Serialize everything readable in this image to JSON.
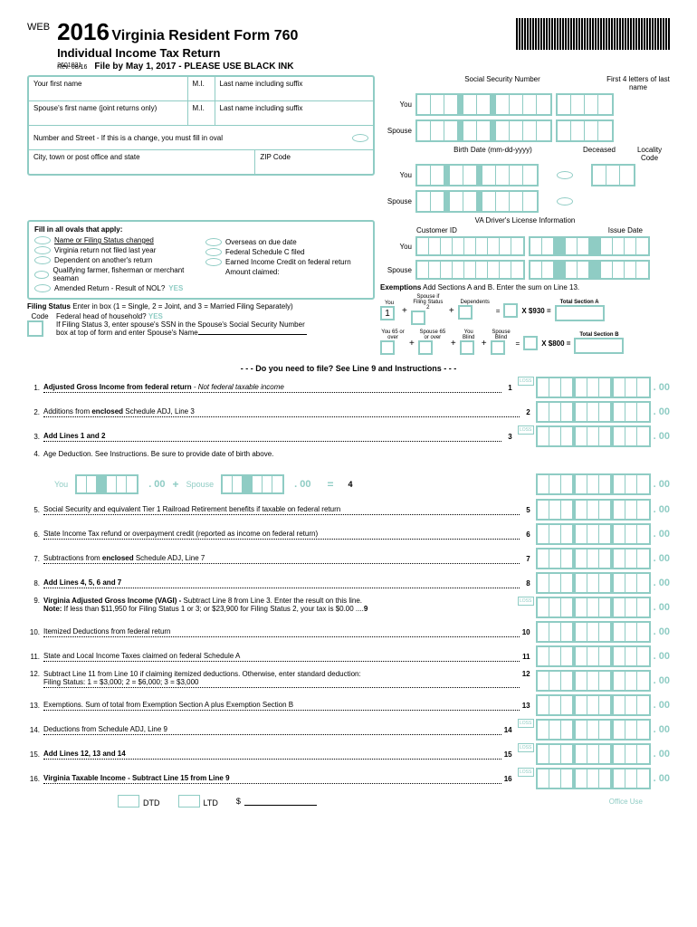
{
  "header": {
    "web": "WEB",
    "year": "2016",
    "title": "Virginia Resident Form 760",
    "subtitle": "Individual Income Tax Return",
    "fileBy": "File by May 1, 2017 - PLEASE USE BLACK INK",
    "code": "2601031",
    "rev": "Rev. 08/16"
  },
  "nameFields": {
    "firstName": "Your first name",
    "mi": "M.I.",
    "lastName": "Last name including suffix",
    "spouseFirst": "Spouse's first name (joint returns only)",
    "spouseMi": "M.I.",
    "spouseLast": "Last name including suffix",
    "address": "Number and Street - If this is a change, you must fill in oval",
    "city": "City, town or post office and state",
    "zip": "ZIP Code"
  },
  "rightHeaders": {
    "ssn": "Social Security Number",
    "first4": "First 4 letters of last name",
    "you": "You",
    "spouse": "Spouse",
    "birthDate": "Birth Date (mm-dd-yyyy)",
    "deceased": "Deceased",
    "locality": "Locality Code",
    "driverLicense": "VA Driver's License Information",
    "customerId": "Customer ID",
    "issueDate": "Issue Date"
  },
  "ovals": {
    "title": "Fill in all ovals that apply:",
    "items1": [
      "Name or Filing Status changed",
      "Virginia return not filed last year",
      "Dependent on another's return",
      "Qualifying farmer, fisherman or merchant seaman",
      "Amended Return - Result of NOL?"
    ],
    "items2": [
      "Overseas on due date",
      "Federal Schedule C filed",
      "Earned Income Credit on federal return",
      "Amount claimed:"
    ],
    "yes": "YES"
  },
  "filingStatus": {
    "label": "Filing Status",
    "instruction": "Enter in box (1 = Single, 2 = Joint, and 3 = Married Filing Separately)",
    "code": "Code",
    "fedHead": "Federal head of household?",
    "yes": "YES",
    "status3": "If Filing Status 3, enter spouse's SSN in the Spouse's Social Security Number",
    "boxTop": "box at top of form and enter Spouse's Name"
  },
  "exemptions": {
    "header": "Exemptions",
    "instruction": "Add Sections A and B. Enter the sum on Line 13.",
    "labels": [
      "You",
      "Spouse if Filing Status 2",
      "Dependents"
    ],
    "one": "1",
    "x930": "X $930 =",
    "x800": "X $800 =",
    "totalA": "Total Section A",
    "totalB": "Total Section B",
    "bLabels": [
      "You 65 or over",
      "Spouse 65 or over",
      "You Blind",
      "Spouse Blind"
    ]
  },
  "linesHeader": "- - - Do you need to file?  See Line 9 and Instructions - - -",
  "lines": [
    {
      "n": "1.",
      "text": "Adjusted Gross Income from federal return",
      "italic": " - Not federal taxable income",
      "end": "1",
      "loss": true,
      "bold": true
    },
    {
      "n": "2.",
      "text": "Additions from enclosed Schedule ADJ, Line 3",
      "end": "2",
      "bold2": true
    },
    {
      "n": "3.",
      "text": "Add Lines 1 and 2",
      "end": "3",
      "loss": true,
      "bold": true
    },
    {
      "n": "4.",
      "text": "Age Deduction. See Instructions. Be sure to provide date of birth above.",
      "noEnd": true,
      "noDash": true
    },
    {
      "n": "5.",
      "text": "Social Security and equivalent Tier 1 Railroad Retirement benefits if taxable on federal return",
      "end": "5"
    },
    {
      "n": "6.",
      "text": "State Income Tax refund or overpayment credit (reported as income on federal return)",
      "end": "6"
    },
    {
      "n": "7.",
      "text": "Subtractions from enclosed Schedule ADJ, Line 7",
      "end": "7",
      "bold2": true
    },
    {
      "n": "8.",
      "text": "Add Lines 4, 5, 6 and 7",
      "end": "8",
      "bold": true
    },
    {
      "n": "9.",
      "text": "Virginia Adjusted Gross Income (VAGI) - ",
      "text2": "Subtract Line 8 from Line 3.  Enter the result on this line.",
      "note": "Note: If less than $11,950 for Filing Status 1 or 3; or $23,900 for Filing Status 2, your tax is $0.00",
      "end": "9",
      "loss": true,
      "bold": true
    },
    {
      "n": "10.",
      "text": "Itemized Deductions from federal return",
      "end": "10"
    },
    {
      "n": "11.",
      "text": "State and Local Income Taxes claimed on federal Schedule A",
      "end": "11"
    },
    {
      "n": "12.",
      "text": "Subtract Line 11 from Line 10 if claiming itemized deductions. Otherwise, enter standard deduction:",
      "text2": "Filing Status: 1 = $3,000; 2 = $6,000; 3 = $3,000",
      "end": "12"
    },
    {
      "n": "13.",
      "text": "Exemptions. Sum of total from Exemption Section A plus Exemption Section B",
      "end": "13"
    },
    {
      "n": "14.",
      "text": "Deductions from Schedule ADJ, Line 9",
      "end": "14",
      "loss": true
    },
    {
      "n": "15.",
      "text": "Add Lines 12, 13 and 14",
      "end": "15",
      "loss": true,
      "bold": true
    },
    {
      "n": "16.",
      "text": "Virginia Taxable Income - Subtract Line 15 from Line 9",
      "end": "16",
      "loss": true,
      "bold": true
    }
  ],
  "ageDeduction": {
    "you": "You",
    "spouse": "Spouse",
    "end": "4"
  },
  "footer": {
    "dtd": "DTD",
    "ltd": "LTD",
    "dollar": "$",
    "officeUse": "Office Use"
  },
  "cents": ". 00",
  "loss": "LOSS"
}
